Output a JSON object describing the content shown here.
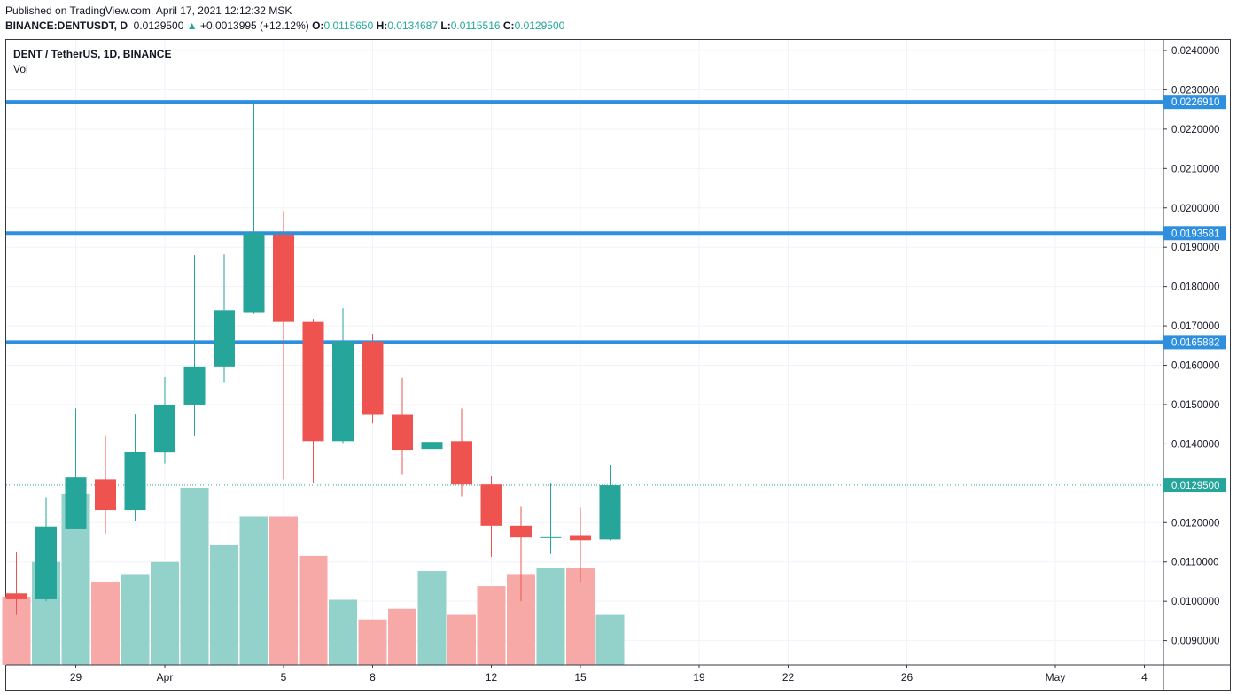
{
  "header": {
    "published": "Published on TradingView.com, April 17, 2021 12:12:32 MSK",
    "symbol": "BINANCE:DENTUSDT, D",
    "last": "0.0129500",
    "change_arrow": "▲",
    "change": "+0.0013995 (+12.12%)",
    "o_label": "O:",
    "o_value": "0.0115650",
    "h_label": "H:",
    "h_value": "0.0134687",
    "l_label": "L:",
    "l_value": "0.0115516",
    "c_label": "C:",
    "c_value": "0.0129500"
  },
  "legend": {
    "title": "DENT / TetherUS, 1D, BINANCE",
    "volume": "Vol"
  },
  "colors": {
    "up": "#26a69a",
    "down": "#ef5350",
    "vol_up": "#93d2cb",
    "vol_down": "#f7a9a7",
    "hline": "#2e8fdf",
    "grid": "#f0f3fa",
    "axis": "#363a45"
  },
  "chart_data": {
    "type": "candlestick",
    "y_axis_ticks": [
      "0.0240000",
      "0.0230000",
      "0.0220000",
      "0.0210000",
      "0.0200000",
      "0.0190000",
      "0.0180000",
      "0.0170000",
      "0.0160000",
      "0.0150000",
      "0.0140000",
      "0.0130000",
      "0.0120000",
      "0.0110000",
      "0.0100000",
      "0.0090000"
    ],
    "ylim": [
      0.0084,
      0.0244
    ],
    "x_axis_ticks": [
      "29",
      "Apr",
      "5",
      "8",
      "12",
      "15",
      "19",
      "22",
      "26",
      "May",
      "4"
    ],
    "candles": [
      {
        "date": "2021-03-27",
        "o": 0.0102,
        "h": 0.01125,
        "l": 0.00965,
        "c": 0.01005
      },
      {
        "date": "2021-03-28",
        "o": 0.01005,
        "h": 0.01265,
        "l": 0.01,
        "c": 0.0119
      },
      {
        "date": "2021-03-29",
        "o": 0.01185,
        "h": 0.0149,
        "l": 0.01185,
        "c": 0.01315
      },
      {
        "date": "2021-03-30",
        "o": 0.0131,
        "h": 0.01422,
        "l": 0.01172,
        "c": 0.01232
      },
      {
        "date": "2021-03-31",
        "o": 0.01232,
        "h": 0.01475,
        "l": 0.01203,
        "c": 0.0138
      },
      {
        "date": "2021-04-01",
        "o": 0.01378,
        "h": 0.0157,
        "l": 0.0135,
        "c": 0.015
      },
      {
        "date": "2021-04-02",
        "o": 0.015,
        "h": 0.0188,
        "l": 0.0142,
        "c": 0.01597
      },
      {
        "date": "2021-04-03",
        "o": 0.01597,
        "h": 0.01882,
        "l": 0.01555,
        "c": 0.0174
      },
      {
        "date": "2021-04-04",
        "o": 0.01735,
        "h": 0.0227,
        "l": 0.0173,
        "c": 0.01936
      },
      {
        "date": "2021-04-05",
        "o": 0.01932,
        "h": 0.01992,
        "l": 0.0131,
        "c": 0.0171
      },
      {
        "date": "2021-04-06",
        "o": 0.0171,
        "h": 0.01718,
        "l": 0.013,
        "c": 0.01407
      },
      {
        "date": "2021-04-07",
        "o": 0.01407,
        "h": 0.01745,
        "l": 0.01402,
        "c": 0.0166
      },
      {
        "date": "2021-04-08",
        "o": 0.0166,
        "h": 0.0168,
        "l": 0.01452,
        "c": 0.01474
      },
      {
        "date": "2021-04-09",
        "o": 0.01474,
        "h": 0.01568,
        "l": 0.01323,
        "c": 0.01385
      },
      {
        "date": "2021-04-10",
        "o": 0.01387,
        "h": 0.01563,
        "l": 0.01247,
        "c": 0.01405
      },
      {
        "date": "2021-04-11",
        "o": 0.01407,
        "h": 0.0149,
        "l": 0.01267,
        "c": 0.01297
      },
      {
        "date": "2021-04-12",
        "o": 0.01297,
        "h": 0.01318,
        "l": 0.01113,
        "c": 0.01192
      },
      {
        "date": "2021-04-13",
        "o": 0.01192,
        "h": 0.0124,
        "l": 0.01,
        "c": 0.01162
      },
      {
        "date": "2021-04-14",
        "o": 0.01162,
        "h": 0.013,
        "l": 0.0112,
        "c": 0.01165
      },
      {
        "date": "2021-04-15",
        "o": 0.01168,
        "h": 0.01238,
        "l": 0.0105,
        "c": 0.01155
      },
      {
        "date": "2021-04-16",
        "o": 0.01157,
        "h": 0.01347,
        "l": 0.01155,
        "c": 0.01295
      }
    ],
    "volume": [
      {
        "dir": "down",
        "v": 0.45
      },
      {
        "dir": "up",
        "v": 0.68
      },
      {
        "dir": "up",
        "v": 1.13
      },
      {
        "dir": "down",
        "v": 0.55
      },
      {
        "dir": "up",
        "v": 0.6
      },
      {
        "dir": "up",
        "v": 0.68
      },
      {
        "dir": "up",
        "v": 1.17
      },
      {
        "dir": "up",
        "v": 0.79
      },
      {
        "dir": "up",
        "v": 0.98
      },
      {
        "dir": "down",
        "v": 0.98
      },
      {
        "dir": "down",
        "v": 0.72
      },
      {
        "dir": "up",
        "v": 0.43
      },
      {
        "dir": "down",
        "v": 0.3
      },
      {
        "dir": "down",
        "v": 0.37
      },
      {
        "dir": "up",
        "v": 0.62
      },
      {
        "dir": "down",
        "v": 0.33
      },
      {
        "dir": "down",
        "v": 0.52
      },
      {
        "dir": "down",
        "v": 0.6
      },
      {
        "dir": "up",
        "v": 0.64
      },
      {
        "dir": "down",
        "v": 0.64
      },
      {
        "dir": "up",
        "v": 0.33
      }
    ],
    "horizontal_lines": [
      "0.0226910",
      "0.0193581",
      "0.0165882"
    ],
    "last_price": "0.0129500"
  }
}
